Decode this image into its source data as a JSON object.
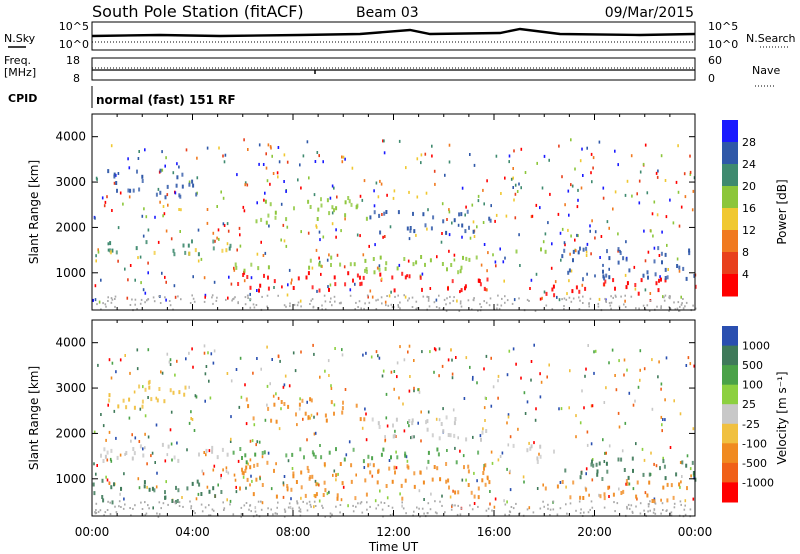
{
  "header": {
    "station": "South Pole Station (fitACF)",
    "beam": "Beam 03",
    "date": "09/Mar/2015"
  },
  "labels": {
    "nsky": "N.Sky",
    "nsearch": "N.Search",
    "freq_line1": "Freq.",
    "freq_line2": "[MHz]",
    "nave": "Nave",
    "cpid": "CPID",
    "cpid_value": "normal (fast) 151 RF",
    "noise_tick_top": "10^5",
    "noise_tick_bottom": "10^0",
    "freq_tick_top": "18",
    "freq_tick_bottom": "8",
    "nave_tick_top": "60",
    "nave_tick_bottom": "0"
  },
  "chart_data": [
    {
      "type": "heatmap",
      "name": "power",
      "ylabel": "Slant Range [km]",
      "ylim": [
        180,
        4500
      ],
      "yticks": [
        "1000",
        "2000",
        "3000",
        "4000"
      ],
      "xticks": [
        "00:00",
        "04:00",
        "08:00",
        "12:00",
        "16:00",
        "20:00",
        "00:00"
      ],
      "colorbar": {
        "label": "Power [dB]",
        "ticks": [
          "4",
          "8",
          "12",
          "16",
          "20",
          "24",
          "28"
        ],
        "colors": [
          "#1a1aff",
          "#2f58a8",
          "#3f8a6f",
          "#8cc63a",
          "#f0c830",
          "#f07a20",
          "#e8401c",
          "#ff0000"
        ]
      },
      "bands": [
        {
          "t0": 0.0,
          "t1": 5.5,
          "r0": 1450,
          "r1": 1750,
          "color": "#3f8a6f"
        },
        {
          "t0": 0.0,
          "t1": 5.5,
          "r0": 1450,
          "r1": 1550,
          "color": "#f0c830"
        },
        {
          "t0": 5.5,
          "t1": 16.0,
          "r0": 650,
          "r1": 1050,
          "color": "#ff0000"
        },
        {
          "t0": 5.5,
          "t1": 16.0,
          "r0": 1050,
          "r1": 1400,
          "color": "#8cc63a"
        },
        {
          "t0": 6.5,
          "t1": 11.0,
          "r0": 2100,
          "r1": 2700,
          "color": "#8cc63a"
        },
        {
          "t0": 0.5,
          "t1": 4.5,
          "r0": 2700,
          "r1": 3300,
          "color": "#2f58a8"
        },
        {
          "t0": 16.5,
          "t1": 18.5,
          "r0": 1500,
          "r1": 1650,
          "color": "#8cc63a"
        },
        {
          "t0": 18.0,
          "t1": 24.0,
          "r0": 550,
          "r1": 900,
          "color": "#ff0000"
        },
        {
          "t0": 18.5,
          "t1": 24.0,
          "r0": 900,
          "r1": 1600,
          "color": "#2f58a8"
        },
        {
          "t0": 11.0,
          "t1": 16.0,
          "r0": 1900,
          "r1": 2400,
          "color": "#2f58a8"
        }
      ]
    },
    {
      "type": "heatmap",
      "name": "velocity",
      "ylabel": "Slant Range [km]",
      "ylim": [
        180,
        4500
      ],
      "yticks": [
        "1000",
        "2000",
        "3000",
        "4000"
      ],
      "xticks": [
        "00:00",
        "04:00",
        "08:00",
        "12:00",
        "16:00",
        "20:00",
        "00:00"
      ],
      "xlabel": "Time UT",
      "colorbar": {
        "label": "Velocity [m s⁻¹]",
        "ticks": [
          "1000",
          "500",
          "100",
          "25",
          "-25",
          "-100",
          "-500",
          "-1000"
        ],
        "colors": [
          "#2a4fb0",
          "#3f7a5a",
          "#4aa248",
          "#8cd040",
          "#c8c8c8",
          "#f0c040",
          "#f08a20",
          "#f06018",
          "#ff0000"
        ]
      },
      "bands": [
        {
          "t0": 0.0,
          "t1": 5.5,
          "r0": 1400,
          "r1": 1800,
          "color": "#c8c8c8"
        },
        {
          "t0": 0.0,
          "t1": 5.5,
          "r0": 500,
          "r1": 1000,
          "color": "#3f7a5a"
        },
        {
          "t0": 5.5,
          "t1": 16.0,
          "r0": 600,
          "r1": 1400,
          "color": "#f08a20"
        },
        {
          "t0": 5.5,
          "t1": 16.0,
          "r0": 1400,
          "r1": 1700,
          "color": "#4aa248"
        },
        {
          "t0": 6.0,
          "t1": 11.0,
          "r0": 2300,
          "r1": 2800,
          "color": "#f08a20"
        },
        {
          "t0": 0.5,
          "t1": 4.0,
          "r0": 2600,
          "r1": 3200,
          "color": "#f0c040"
        },
        {
          "t0": 11.0,
          "t1": 16.0,
          "r0": 1900,
          "r1": 2400,
          "color": "#c8c8c8"
        },
        {
          "t0": 16.5,
          "t1": 18.5,
          "r0": 1400,
          "r1": 1800,
          "color": "#c8c8c8"
        },
        {
          "t0": 18.0,
          "t1": 24.0,
          "r0": 550,
          "r1": 1000,
          "color": "#f08a20"
        },
        {
          "t0": 18.5,
          "t1": 24.0,
          "r0": 1000,
          "r1": 1500,
          "color": "#3f7a5a"
        }
      ]
    }
  ]
}
